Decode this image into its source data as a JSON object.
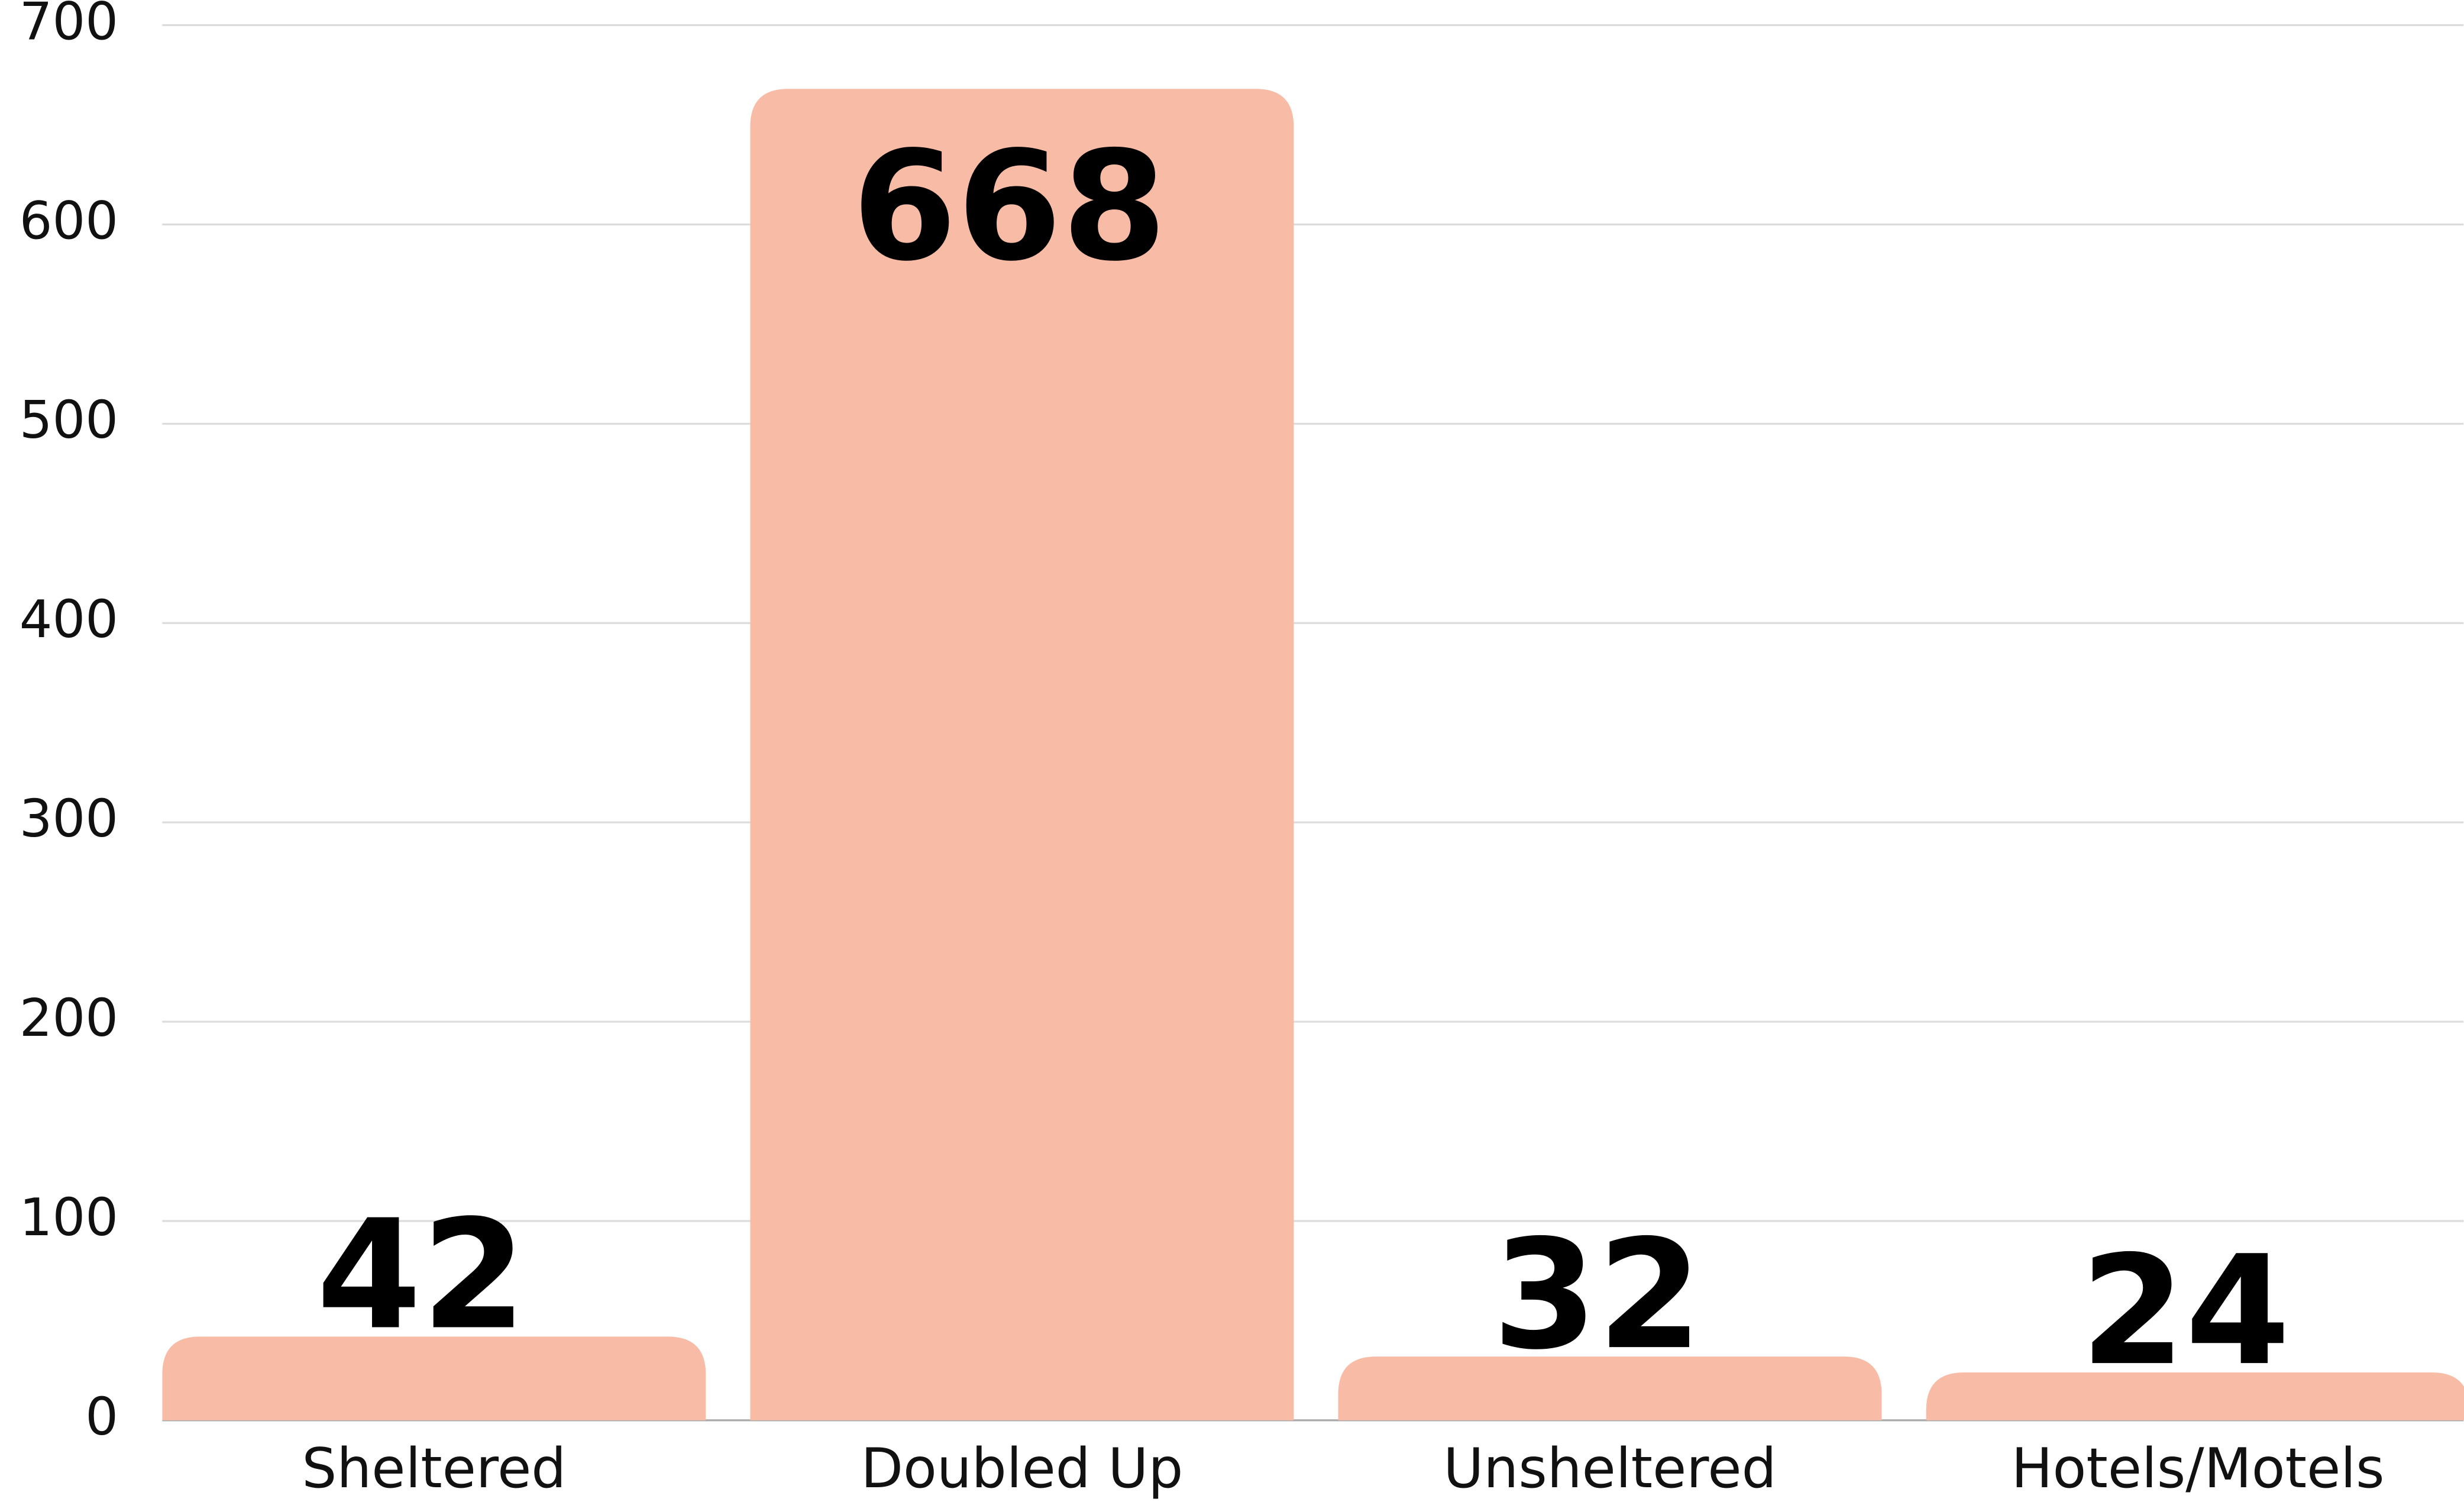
{
  "chart_data": {
    "type": "bar",
    "categories": [
      "Sheltered",
      "Doubled Up",
      "Unsheltered",
      "Hotels/Motels"
    ],
    "values": [
      42,
      668,
      32,
      24
    ],
    "color": "#f8bca6",
    "ylim": [
      0,
      700
    ],
    "yticks": [
      0,
      100,
      200,
      300,
      400,
      500,
      600,
      700
    ],
    "grid": true
  }
}
